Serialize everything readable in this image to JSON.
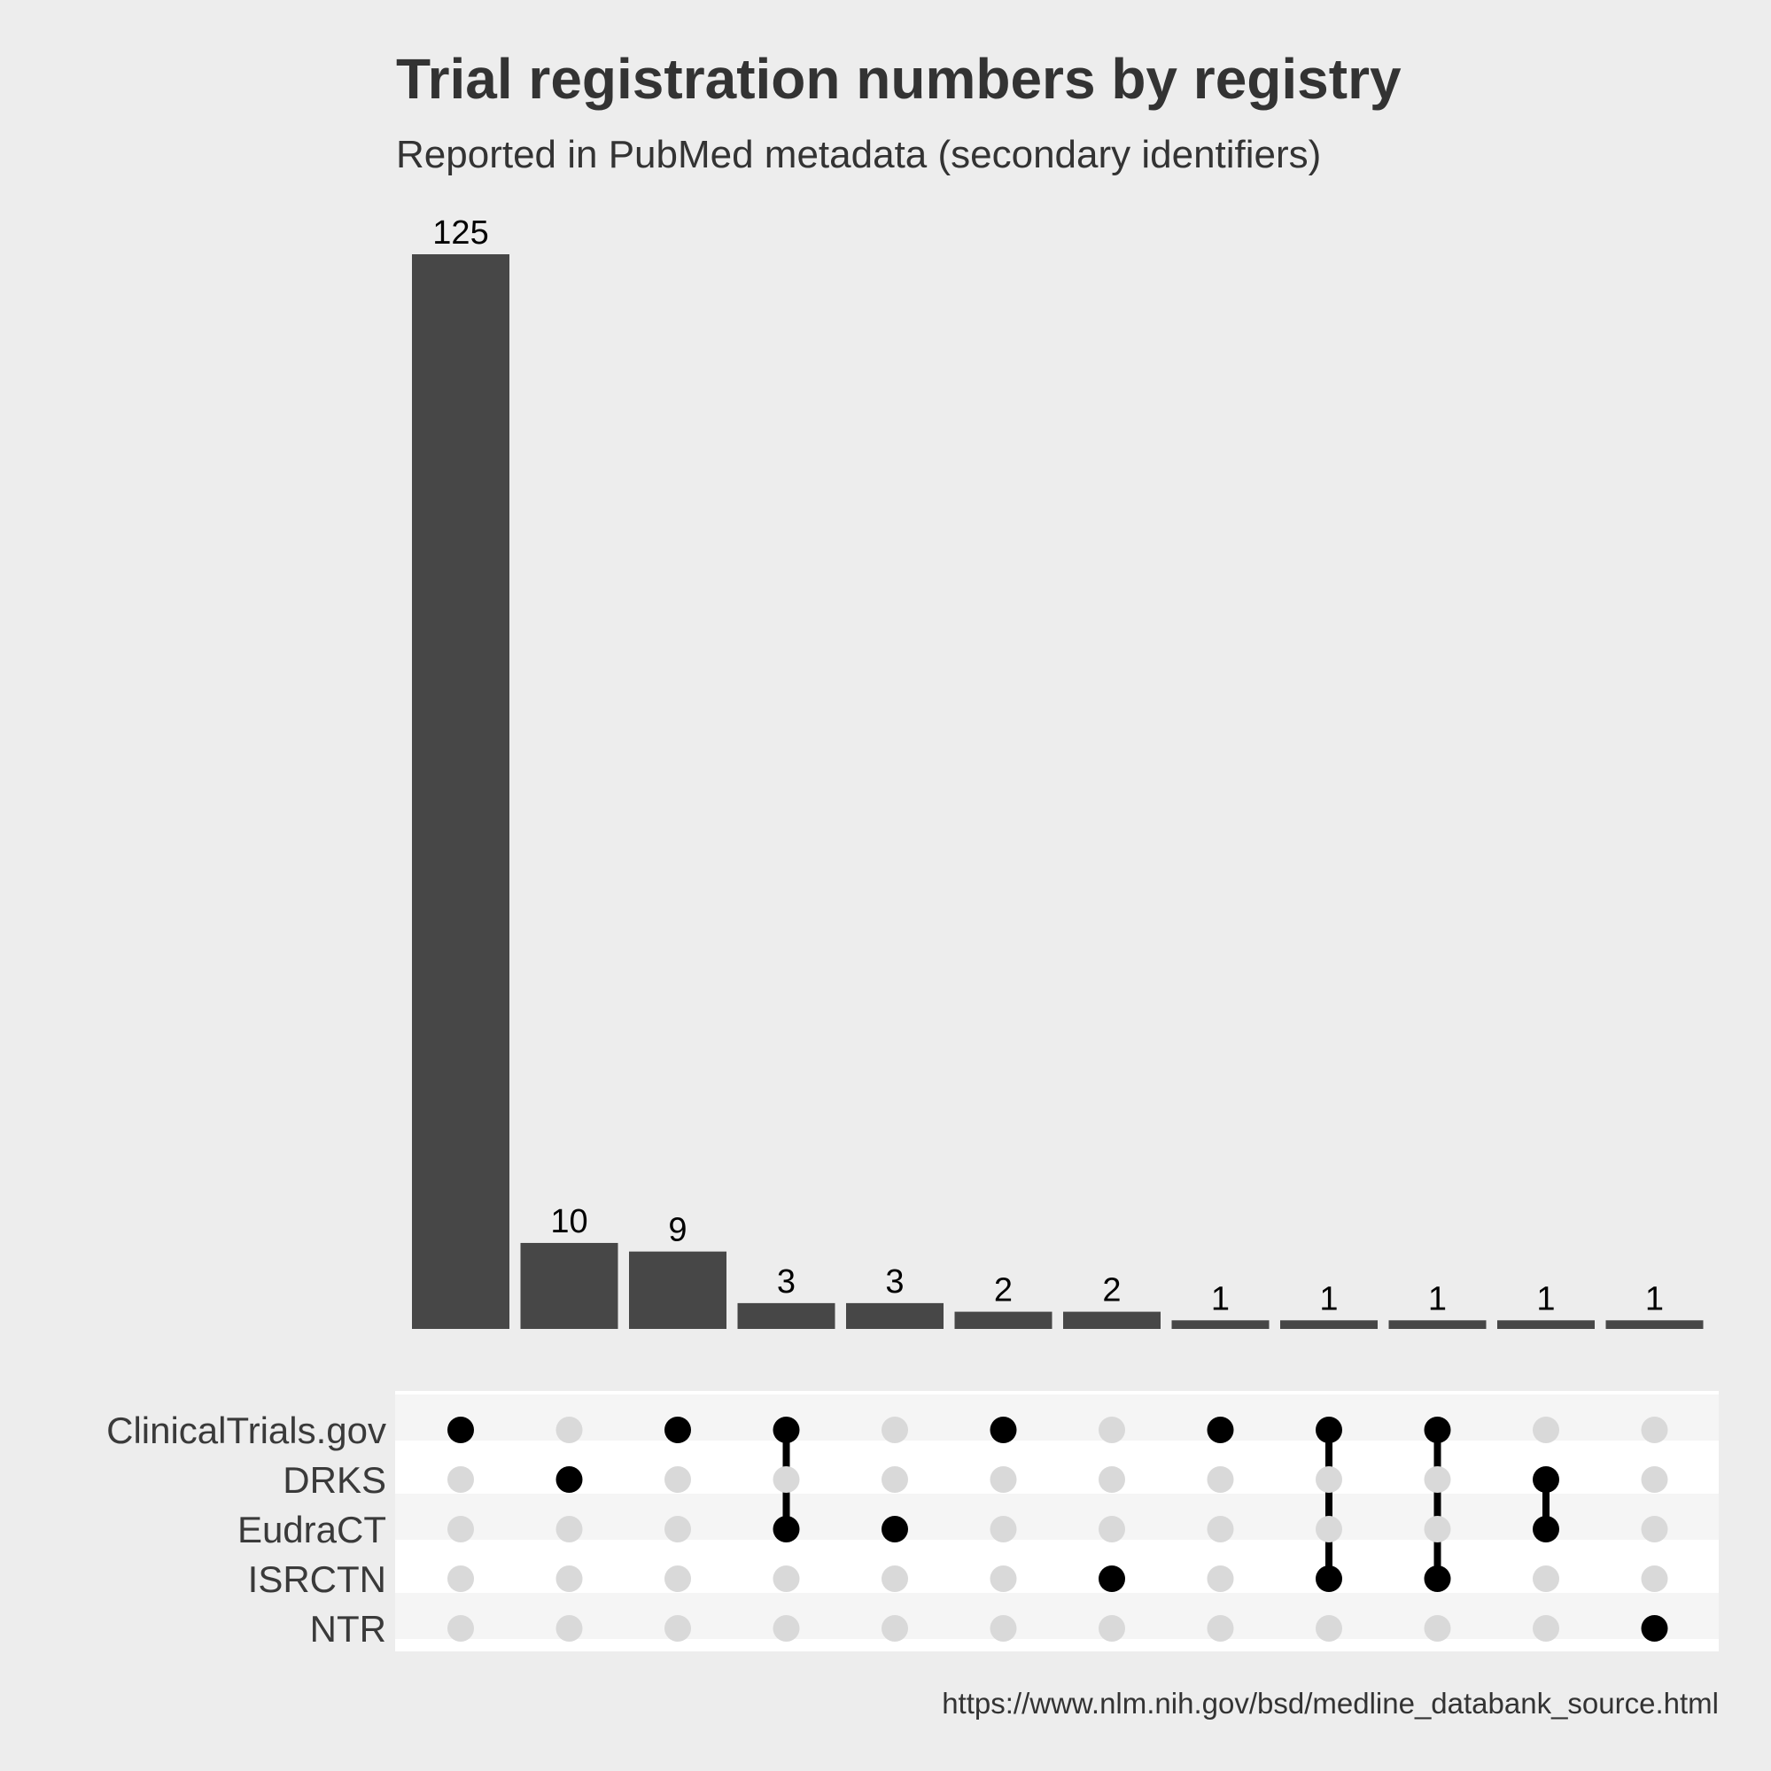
{
  "chart_data": {
    "type": "upset",
    "title": "Trial registration numbers by registry",
    "subtitle": "Reported in PubMed metadata (secondary identifiers)",
    "caption": "https://www.nlm.nih.gov/bsd/medline_databank_source.html",
    "sets": [
      "ClinicalTrials.gov",
      "DRKS",
      "EudraCT",
      "ISRCTN",
      "NTR"
    ],
    "intersections": [
      {
        "sets": [
          "ClinicalTrials.gov"
        ],
        "value": 125
      },
      {
        "sets": [
          "DRKS"
        ],
        "value": 10
      },
      {
        "sets": [
          "ClinicalTrials.gov"
        ],
        "value": 9
      },
      {
        "sets": [
          "ClinicalTrials.gov",
          "EudraCT"
        ],
        "value": 3
      },
      {
        "sets": [
          "EudraCT"
        ],
        "value": 3
      },
      {
        "sets": [
          "ClinicalTrials.gov"
        ],
        "value": 2
      },
      {
        "sets": [
          "ISRCTN"
        ],
        "value": 2
      },
      {
        "sets": [
          "ClinicalTrials.gov"
        ],
        "value": 1
      },
      {
        "sets": [
          "ClinicalTrials.gov",
          "ISRCTN"
        ],
        "value": 1
      },
      {
        "sets": [
          "ClinicalTrials.gov",
          "ISRCTN"
        ],
        "value": 1
      },
      {
        "sets": [
          "DRKS",
          "EudraCT"
        ],
        "value": 1
      },
      {
        "sets": [
          "NTR"
        ],
        "value": 1
      }
    ],
    "ylim": [
      0,
      125
    ],
    "colors": {
      "bar": "#474747",
      "dot_active": "#000000",
      "dot_inactive": "#d9d9d9",
      "matrix_stripe": "#f5f5f5",
      "matrix_bg": "#ffffff",
      "background": "#ededed"
    }
  }
}
